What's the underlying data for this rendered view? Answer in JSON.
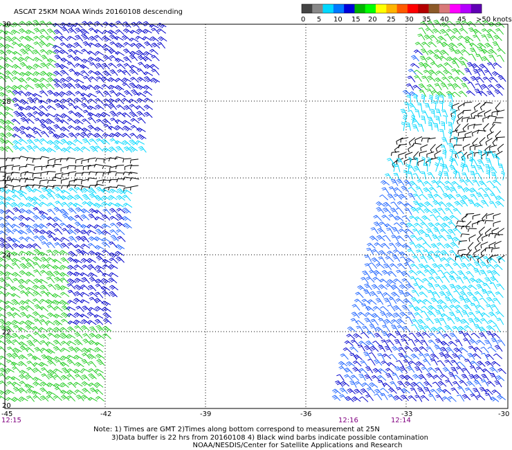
{
  "title": "ASCAT 25KM NOAA Winds 20160108 descending",
  "legend": {
    "unit": ">50 knots",
    "ticks": [
      "0",
      "5",
      "10",
      "15",
      "20",
      "25",
      "30",
      "35",
      "40",
      "45"
    ],
    "colors": [
      "#444444",
      "#888888",
      "#00d8ff",
      "#0078ff",
      "#0000d8",
      "#00b400",
      "#00ff00",
      "#ffff00",
      "#ffb400",
      "#ff5a00",
      "#ff0000",
      "#b40000",
      "#8c5a28",
      "#d87878",
      "#ff00ff",
      "#b400ff",
      "#6000b4"
    ]
  },
  "axes": {
    "lon_labels": [
      "-45",
      "-42",
      "-39",
      "-36",
      "-33",
      "-30"
    ],
    "lat_labels": [
      "30",
      "28",
      "26",
      "24",
      "22",
      "20"
    ],
    "lon_range": [
      -45,
      -30
    ],
    "lat_range": [
      20,
      30
    ]
  },
  "times": [
    "12:15",
    "12:16",
    "12:14"
  ],
  "notes": {
    "line1": "Note: 1) Times are GMT 2)Times along bottom correspond to measurement at 25N",
    "line2": "3)Data buffer is 22 hrs from 20160108 4) Black wind barbs indicate possible contamination",
    "line3": "NOAA/NESDIS/Center for Satellite Applications and Research"
  },
  "barb_colors": {
    "green": "#22cc22",
    "blue": "#0000cc",
    "mid_blue": "#1e64ff",
    "cyan": "#00d8ff",
    "black": "#000000"
  }
}
